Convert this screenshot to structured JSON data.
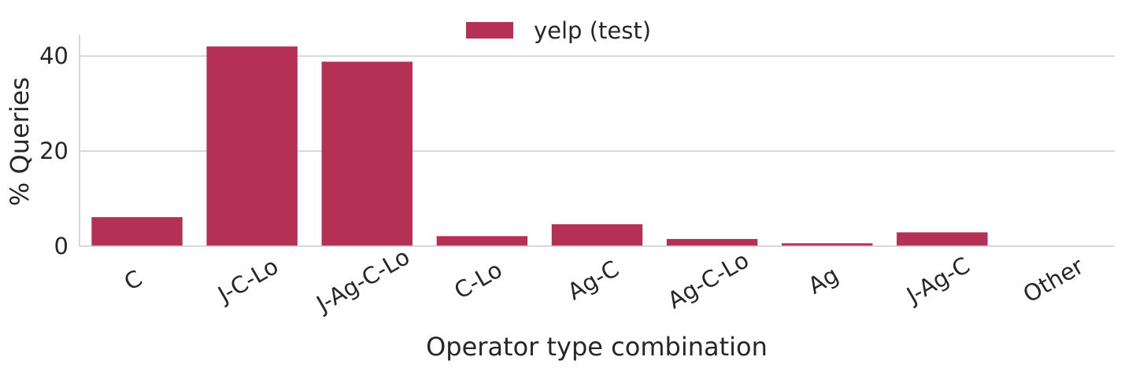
{
  "chart_data": {
    "type": "bar",
    "categories": [
      "C",
      "J-C-Lo",
      "J-Ag-C-Lo",
      "C-Lo",
      "Ag-C",
      "Ag-C-Lo",
      "Ag",
      "J-Ag-C",
      "Other"
    ],
    "series": [
      {
        "name": "yelp (test)",
        "values": [
          6.1,
          42.0,
          38.8,
          2.1,
          4.6,
          1.5,
          0.6,
          2.9,
          0.0
        ],
        "color": "#b53055"
      }
    ],
    "xlabel": "Operator type combination",
    "ylabel": "% Queries",
    "yticks": [
      0,
      20,
      40
    ],
    "ylim": [
      0,
      44.5
    ],
    "grid": "horizontal",
    "legend_position": "top-center",
    "tick_label_rotation": -30
  }
}
